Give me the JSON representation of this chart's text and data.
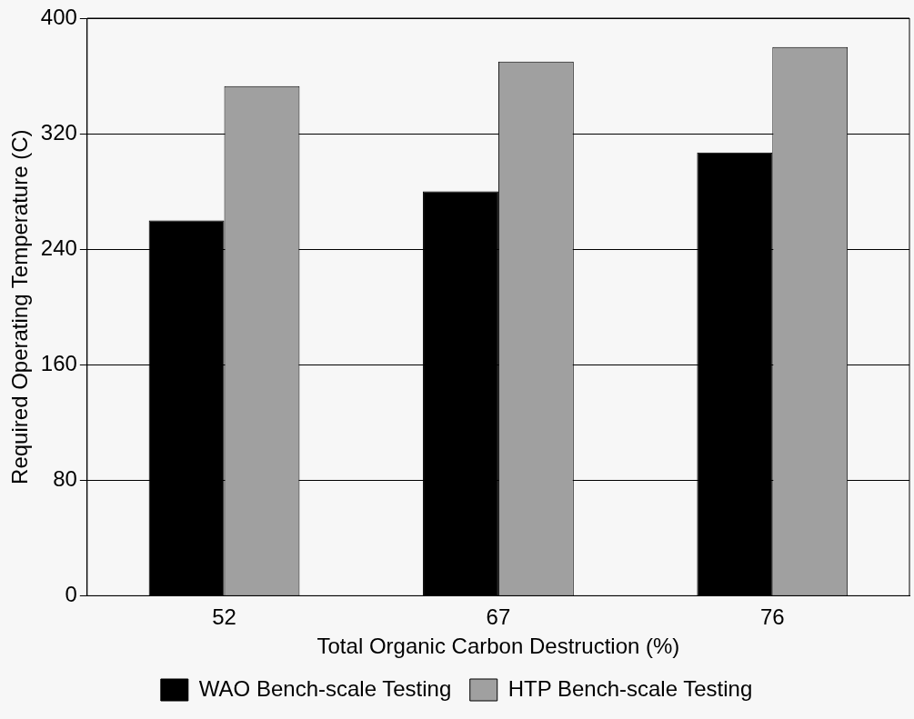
{
  "chart_data": {
    "type": "bar",
    "xlabel": "Total Organic Carbon Destruction (%)",
    "ylabel": "Required Operating Temperature (C)",
    "categories": [
      "52",
      "67",
      "76"
    ],
    "series": [
      {
        "name": "WAO Bench-scale Testing",
        "color": "#000000",
        "values": [
          260,
          280,
          307
        ]
      },
      {
        "name": "HTP Bench-scale Testing",
        "color": "#a0a0a0",
        "values": [
          353,
          370,
          380
        ]
      }
    ],
    "ylim": [
      0,
      400
    ],
    "yticks": [
      0,
      80,
      160,
      240,
      320,
      400
    ],
    "grid": "y",
    "legend": "bottom"
  }
}
